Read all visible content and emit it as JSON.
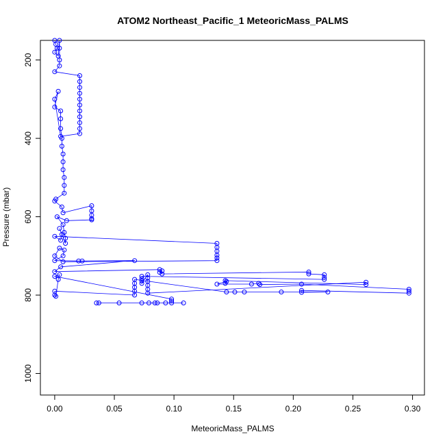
{
  "chart_data": {
    "type": "scatter",
    "title": "ATOM2 Northeast_Pacific_1 MeteoricMass_PALMS",
    "xlabel": "MeteoricMass_PALMS",
    "ylabel": "Pressure (mbar)",
    "xlim": [
      -0.012,
      0.31
    ],
    "ylim": [
      1055,
      150
    ],
    "y_reversed": true,
    "x_ticks": [
      0.0,
      0.05,
      0.1,
      0.15,
      0.2,
      0.25,
      0.3
    ],
    "x_tick_labels": [
      "0.00",
      "0.05",
      "0.10",
      "0.15",
      "0.20",
      "0.25",
      "0.30"
    ],
    "y_ticks": [
      200,
      400,
      600,
      800,
      1000
    ],
    "y_tick_labels": [
      "200",
      "400",
      "600",
      "800",
      "1000"
    ],
    "grid": false,
    "legend": "none",
    "colors": {
      "series": "#0000ff",
      "axis": "#000000"
    },
    "series": [
      {
        "style": "line+open-circles",
        "points": [
          [
            0.0,
            150
          ],
          [
            0.001,
            160
          ],
          [
            0.002,
            170
          ],
          [
            0.0,
            180
          ],
          [
            0.003,
            190
          ],
          [
            0.004,
            150
          ],
          [
            0.004,
            170
          ],
          [
            0.004,
            200
          ],
          [
            0.004,
            215
          ],
          [
            0.0,
            230
          ],
          [
            0.021,
            240
          ],
          [
            0.021,
            255
          ],
          [
            0.021,
            270
          ],
          [
            0.021,
            285
          ],
          [
            0.021,
            300
          ],
          [
            0.021,
            315
          ],
          [
            0.021,
            330
          ],
          [
            0.021,
            345
          ],
          [
            0.021,
            360
          ],
          [
            0.021,
            375
          ],
          [
            0.021,
            388
          ],
          [
            0.005,
            395
          ],
          [
            0.0,
            300
          ],
          [
            0.003,
            280
          ],
          [
            0.0,
            320
          ],
          [
            0.005,
            330
          ],
          [
            0.005,
            350
          ],
          [
            0.005,
            375
          ],
          [
            0.006,
            400
          ],
          [
            0.006,
            420
          ],
          [
            0.007,
            440
          ],
          [
            0.007,
            460
          ],
          [
            0.007,
            480
          ],
          [
            0.008,
            500
          ],
          [
            0.008,
            520
          ],
          [
            0.008,
            540
          ],
          [
            0.001,
            555
          ],
          [
            0.0,
            560
          ],
          [
            0.006,
            575
          ],
          [
            0.007,
            590
          ],
          [
            0.031,
            572
          ],
          [
            0.031,
            585
          ],
          [
            0.031,
            596
          ],
          [
            0.031,
            605
          ],
          [
            0.031,
            608
          ],
          [
            0.01,
            610
          ],
          [
            0.002,
            600
          ],
          [
            0.007,
            620
          ],
          [
            0.008,
            640
          ],
          [
            0.009,
            655
          ],
          [
            0.009,
            668
          ],
          [
            0.004,
            630
          ],
          [
            0.006,
            645
          ],
          [
            0.005,
            660
          ],
          [
            0.0,
            650
          ],
          [
            0.136,
            668
          ],
          [
            0.136,
            678
          ],
          [
            0.136,
            688
          ],
          [
            0.136,
            698
          ],
          [
            0.136,
            705
          ],
          [
            0.136,
            712
          ],
          [
            0.007,
            715
          ],
          [
            0.0,
            700
          ],
          [
            0.004,
            680
          ],
          [
            0.008,
            685
          ],
          [
            0.007,
            700
          ],
          [
            0.0,
            712
          ],
          [
            0.02,
            713
          ],
          [
            0.023,
            713
          ],
          [
            0.067,
            712
          ],
          [
            0.005,
            728
          ],
          [
            0.0,
            740
          ],
          [
            0.088,
            735
          ],
          [
            0.09,
            738
          ],
          [
            0.088,
            742
          ],
          [
            0.09,
            746
          ],
          [
            0.213,
            741
          ],
          [
            0.213,
            746
          ],
          [
            0.226,
            748
          ],
          [
            0.226,
            755
          ],
          [
            0.226,
            760
          ],
          [
            0.073,
            752
          ],
          [
            0.073,
            758
          ],
          [
            0.073,
            764
          ],
          [
            0.073,
            770
          ],
          [
            0.078,
            748
          ],
          [
            0.078,
            756
          ],
          [
            0.078,
            765
          ],
          [
            0.078,
            775
          ],
          [
            0.078,
            785
          ],
          [
            0.078,
            795
          ],
          [
            0.261,
            767
          ],
          [
            0.261,
            773
          ],
          [
            0.143,
            763
          ],
          [
            0.143,
            770
          ],
          [
            0.144,
            765
          ],
          [
            0.136,
            772
          ],
          [
            0.165,
            772
          ],
          [
            0.171,
            770
          ],
          [
            0.172,
            773
          ],
          [
            0.207,
            772
          ],
          [
            0.297,
            785
          ],
          [
            0.297,
            790
          ],
          [
            0.297,
            795
          ],
          [
            0.207,
            788
          ],
          [
            0.207,
            793
          ],
          [
            0.229,
            792
          ],
          [
            0.19,
            792
          ],
          [
            0.159,
            792
          ],
          [
            0.151,
            792
          ],
          [
            0.144,
            792
          ],
          [
            0.067,
            760
          ],
          [
            0.067,
            770
          ],
          [
            0.067,
            780
          ],
          [
            0.067,
            790
          ],
          [
            0.067,
            800
          ],
          [
            0.0,
            790
          ],
          [
            0.0,
            800
          ],
          [
            0.001,
            803
          ],
          [
            0.003,
            760
          ],
          [
            0.004,
            748
          ],
          [
            0.0,
            752
          ],
          [
            0.098,
            810
          ],
          [
            0.098,
            815
          ],
          [
            0.098,
            820
          ],
          [
            0.086,
            820
          ],
          [
            0.084,
            820
          ],
          [
            0.093,
            820
          ],
          [
            0.079,
            820
          ],
          [
            0.108,
            820
          ],
          [
            0.073,
            820
          ],
          [
            0.054,
            820
          ],
          [
            0.037,
            820
          ],
          [
            0.035,
            820
          ]
        ]
      }
    ]
  }
}
